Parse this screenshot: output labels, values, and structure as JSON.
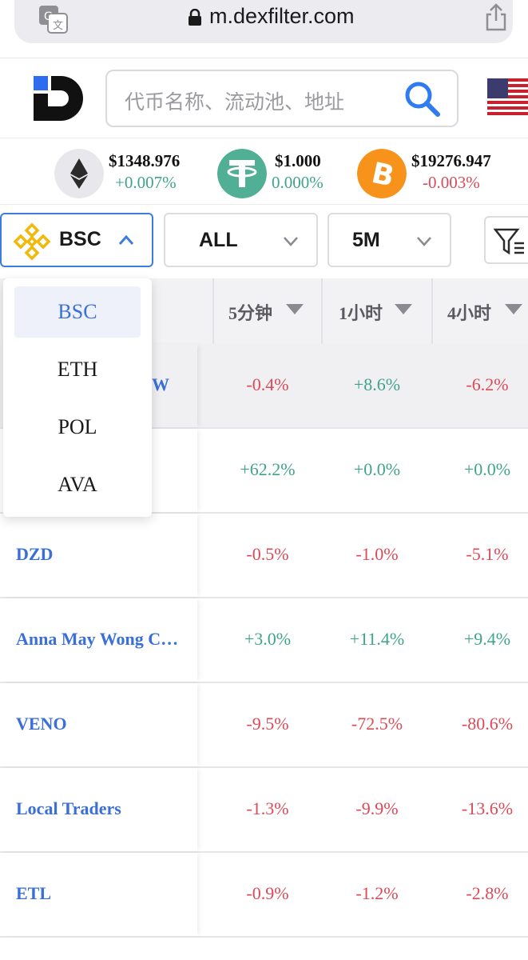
{
  "browser": {
    "url": "m.dexfilter.com"
  },
  "search": {
    "placeholder": "代币名称、流动池、地址"
  },
  "ticker": [
    {
      "coin": "ETH",
      "price": "$1348.976",
      "change": "+0.007%",
      "direction": "up",
      "color": "#e8e8ec",
      "icon": "eth-icon"
    },
    {
      "coin": "USDT",
      "price": "$1.000",
      "change": "0.000%",
      "direction": "up",
      "color": "#50af95",
      "icon": "usdt-icon"
    },
    {
      "coin": "BTC",
      "price": "$19276.947",
      "change": "-0.003%",
      "direction": "down",
      "color": "#f7931a",
      "icon": "btc-icon"
    }
  ],
  "filters": {
    "chain": "BSC",
    "type": "ALL",
    "interval": "5M"
  },
  "chain_menu": {
    "items": [
      "BSC",
      "ETH",
      "POL",
      "AVA"
    ],
    "selected": "BSC"
  },
  "table": {
    "columns": [
      "5分钟",
      "1小时",
      "4小时"
    ],
    "rows": [
      {
        "name": "W",
        "c5m": "-0.4%",
        "c1h": "+8.6%",
        "c4h": "-6.2%"
      },
      {
        "name": "",
        "c5m": "+62.2%",
        "c1h": "+0.0%",
        "c4h": "+0.0%"
      },
      {
        "name": "DZD",
        "c5m": "-0.5%",
        "c1h": "-1.0%",
        "c4h": "-5.1%"
      },
      {
        "name": "Anna May Wong C…",
        "c5m": "+3.0%",
        "c1h": "+11.4%",
        "c4h": "+9.4%"
      },
      {
        "name": "VENO",
        "c5m": "-9.5%",
        "c1h": "-72.5%",
        "c4h": "-80.6%"
      },
      {
        "name": "Local Traders",
        "c5m": "-1.3%",
        "c1h": "-9.9%",
        "c4h": "-13.6%"
      },
      {
        "name": "ETL",
        "c5m": "-0.9%",
        "c1h": "-1.2%",
        "c4h": "-2.8%"
      }
    ]
  },
  "colors": {
    "positive": "#3fa48a",
    "negative": "#dc4a57",
    "link": "#3b6fd8",
    "accent": "#3b7ddd"
  }
}
